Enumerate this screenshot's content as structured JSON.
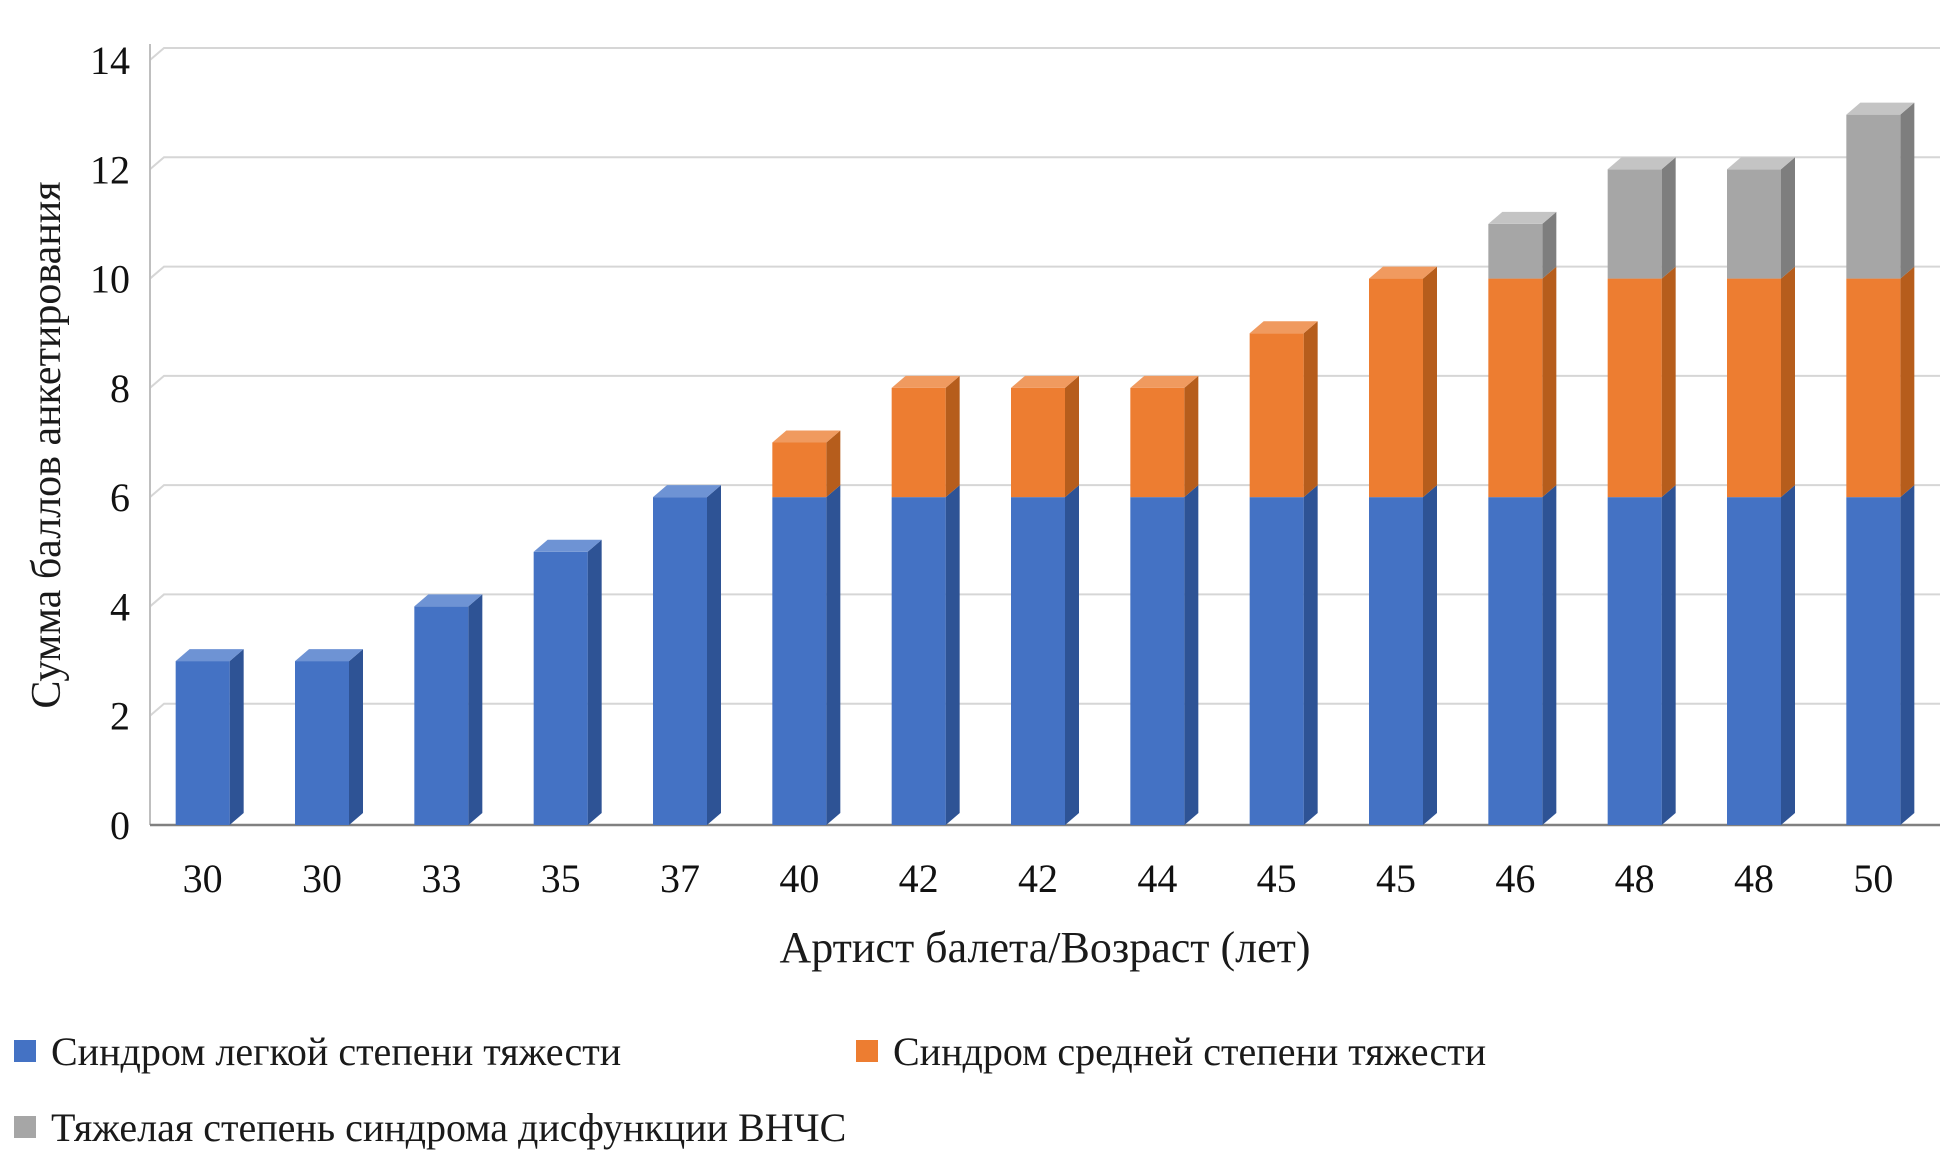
{
  "chart_data": {
    "type": "bar",
    "stacked": true,
    "style": "3d",
    "title": "",
    "xlabel": "Артист балета/Возраст (лет)",
    "ylabel": "Сумма баллов анкетирования",
    "categories": [
      "30",
      "30",
      "33",
      "35",
      "37",
      "40",
      "42",
      "42",
      "44",
      "45",
      "45",
      "46",
      "48",
      "48",
      "50"
    ],
    "series": [
      {
        "name": "Синдром легкой степени тяжести",
        "color": "#4472C4",
        "side_color": "#2E5395",
        "top_color": "#6E93D4",
        "values": [
          3,
          3,
          4,
          5,
          6,
          6,
          6,
          6,
          6,
          6,
          6,
          6,
          6,
          6,
          6
        ]
      },
      {
        "name": "Синдром средней степени тяжести",
        "color": "#ED7D31",
        "side_color": "#B65D1C",
        "top_color": "#F09A5F",
        "values": [
          0,
          0,
          0,
          0,
          0,
          1,
          2,
          2,
          2,
          3,
          4,
          4,
          4,
          4,
          4
        ]
      },
      {
        "name": "Тяжелая степень синдрома дисфункции ВНЧС",
        "color": "#A6A6A6",
        "side_color": "#7E7E7E",
        "top_color": "#C4C4C4",
        "values": [
          0,
          0,
          0,
          0,
          0,
          0,
          0,
          0,
          0,
          0,
          0,
          1,
          2,
          2,
          3
        ]
      }
    ],
    "ylim": [
      0,
      14
    ],
    "ytick_step": 2,
    "grid": true,
    "legend_position": "bottom"
  },
  "axis": {
    "gridline_color": "#D6D6D6",
    "baseline_color": "#808080",
    "axisline_color": "#BFBFBF"
  }
}
